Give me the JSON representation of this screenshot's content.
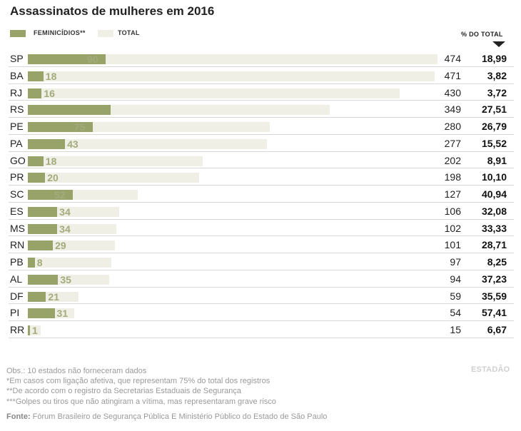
{
  "title": "Assassinatos de mulheres em 2016",
  "legend": {
    "feminicidios_label": "FEMINICÍDIOS**",
    "total_label": "TOTAL"
  },
  "pct_header": "% DO TOTAL",
  "colors": {
    "feminicidios": "#98a36a",
    "total": "#efefe5",
    "label_on_fem": "#ffffff",
    "label_on_total": "#a3ab7c"
  },
  "chart_data": {
    "type": "bar",
    "categories": [
      "SP",
      "BA",
      "RJ",
      "RS",
      "PE",
      "PA",
      "GO",
      "PR",
      "SC",
      "ES",
      "MS",
      "RN",
      "PB",
      "AL",
      "DF",
      "PI",
      "RR"
    ],
    "series": [
      {
        "name": "FEMINICÍDIOS**",
        "values": [
          90,
          18,
          16,
          null,
          75,
          43,
          18,
          20,
          52,
          34,
          34,
          29,
          8,
          35,
          21,
          31,
          1
        ],
        "labels": [
          "90",
          "18",
          "16",
          "",
          "75",
          "43",
          "18",
          "20",
          "52",
          "34",
          "34",
          "29",
          "8",
          "35",
          "21",
          "31",
          "1"
        ]
      },
      {
        "name": "TOTAL",
        "values": [
          474,
          471,
          430,
          349,
          280,
          277,
          202,
          198,
          127,
          106,
          102,
          101,
          97,
          94,
          59,
          54,
          15
        ],
        "labels": [
          "474",
          "471",
          "430",
          "349",
          "280",
          "277",
          "202",
          "198",
          "127",
          "106",
          "102",
          "101",
          "97",
          "94",
          "59",
          "54",
          "15"
        ]
      }
    ],
    "fem_bar_values": [
      90,
      18,
      16,
      96,
      75,
      43,
      18,
      20,
      52,
      34,
      34,
      29,
      8,
      35,
      21,
      31,
      1
    ],
    "pct_of_total": [
      "18,99",
      "3,82",
      "3,72",
      "27,51",
      "26,79",
      "15,52",
      "8,91",
      "10,10",
      "40,94",
      "32,08",
      "33,33",
      "28,71",
      "8,25",
      "37,23",
      "35,59",
      "57,41",
      "6,67"
    ],
    "xlim": [
      0,
      474
    ]
  },
  "footer": {
    "obs": "Obs.: 10 estados não forneceram dados",
    "note1": "*Em casos com ligação afetiva, que representam 75% do total dos registros",
    "note2": "**De acordo com o registro da Secretarias Estaduais de Segurança",
    "note3": "***Golpes ou tiros que não atingiram a vítima, mas representaram grave risco",
    "source_label": "Fonte:",
    "source_text": " Fórum Brasileiro de Segurança Pública E Ministério Público do Estado de São Paulo"
  },
  "logo_text": "ESTADÃO"
}
